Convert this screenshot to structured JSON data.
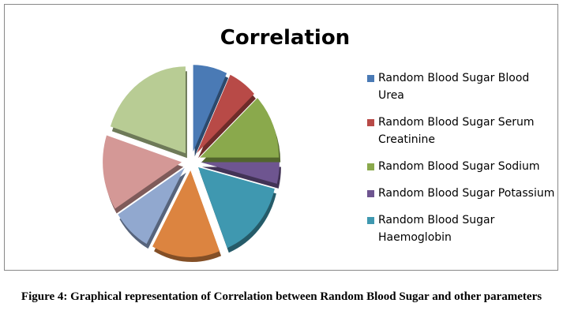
{
  "chart_data": {
    "type": "pie",
    "title": "Correlation",
    "exploded": true,
    "categories": [
      "Random Blood Sugar Blood Urea",
      "Random Blood Sugar Serum Creatinine",
      "Random Blood Sugar Sodium",
      "Random Blood Sugar Potassium",
      "Random Blood Sugar Haemoglobin",
      "",
      "",
      "",
      ""
    ],
    "values": [
      7,
      6,
      12,
      4,
      15,
      14,
      8,
      14,
      20
    ],
    "colors": [
      "#4a7ab5",
      "#b84a47",
      "#8aa94c",
      "#6e5590",
      "#3f98b0",
      "#dc8440",
      "#91a8cf",
      "#d49896",
      "#b8cc94"
    ],
    "legend_position": "right"
  },
  "caption": "Figure 4: Graphical representation of Correlation between Random Blood Sugar and other parameters"
}
